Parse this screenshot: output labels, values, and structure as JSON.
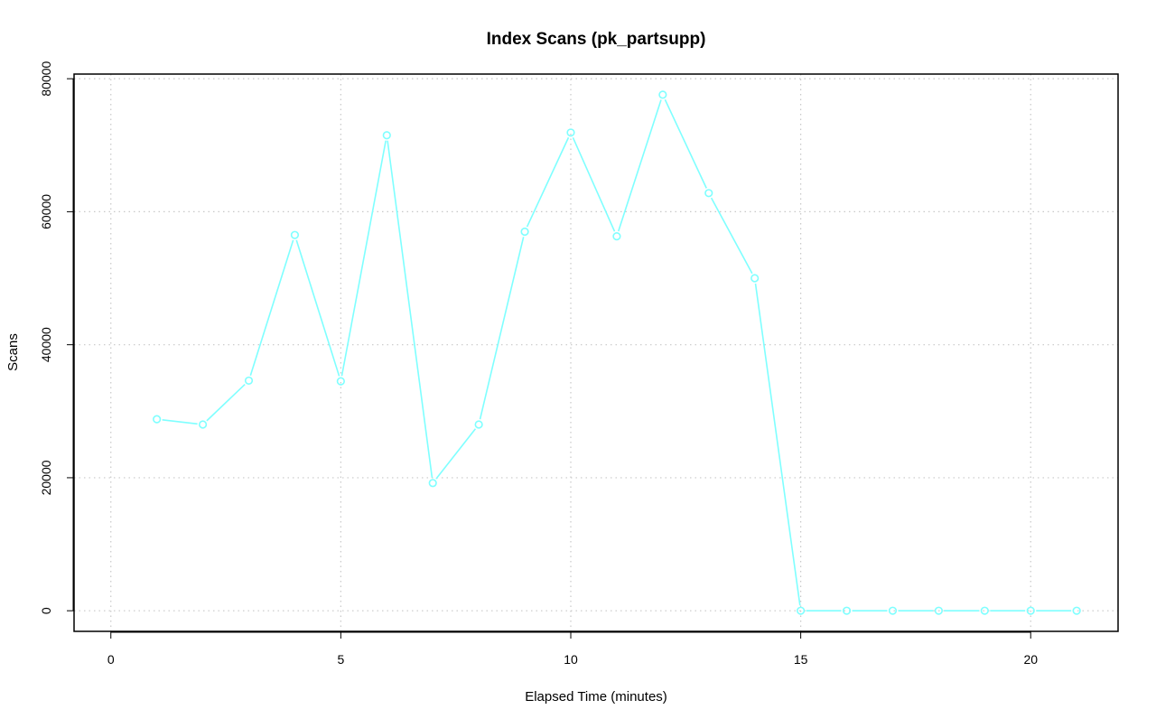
{
  "chart_data": {
    "type": "line",
    "title": "Index Scans (pk_partsupp)",
    "xlabel": "Elapsed Time (minutes)",
    "ylabel": "Scans",
    "xlim": [
      -0.8,
      21.9
    ],
    "ylim": [
      -3100,
      80700
    ],
    "x_ticks": [
      0,
      5,
      10,
      15,
      20
    ],
    "y_ticks": [
      0,
      20000,
      40000,
      60000,
      80000
    ],
    "grid": true,
    "line_color": "#7fffff",
    "marker": "open-circle",
    "series": [
      {
        "x": [
          1,
          2,
          3,
          4,
          5,
          6,
          7,
          8,
          9,
          10,
          11,
          12,
          13,
          14,
          15,
          16,
          17,
          18,
          19,
          20,
          21
        ],
        "values": [
          28800,
          28000,
          34600,
          56500,
          34500,
          71500,
          19200,
          28000,
          57000,
          71900,
          56300,
          77600,
          62800,
          50000,
          0,
          0,
          0,
          0,
          0,
          0,
          0
        ]
      }
    ]
  }
}
